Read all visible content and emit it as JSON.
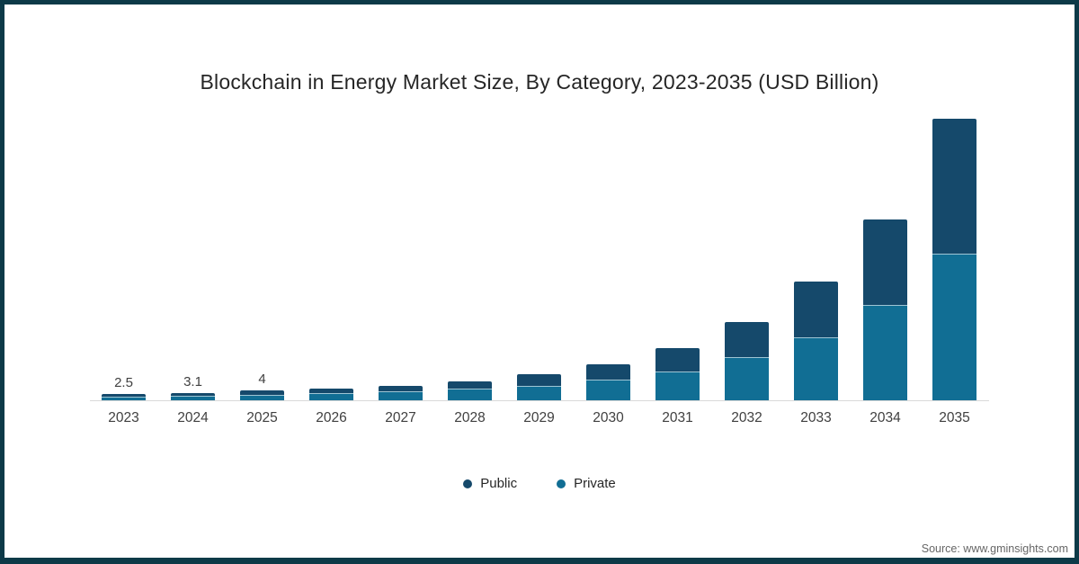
{
  "title": "Blockchain in Energy Market Size, By Category, 2023-2035 (USD Billion)",
  "source": "Source: www.gminsights.com",
  "frame": {
    "border_color": "#0D3A48"
  },
  "colors": {
    "public": "#15496B",
    "private": "#116E94",
    "axis_line": "#D9D9D9",
    "tick_text": "#404040",
    "title_text": "#262626",
    "source_text": "#666666"
  },
  "legend": {
    "position": "bottom",
    "items": [
      {
        "label": "Public",
        "color": "#15496B",
        "marker": "circle"
      },
      {
        "label": "Private",
        "color": "#116E94",
        "marker": "circle"
      }
    ]
  },
  "chart_data": {
    "type": "bar",
    "stacked": true,
    "title": "Blockchain in Energy Market Size, By Category, 2023-2035 (USD Billion)",
    "xlabel": "",
    "ylabel": "USD Billion",
    "ylim": [
      0,
      120
    ],
    "grid": false,
    "legend_position": "bottom",
    "categories": [
      "2023",
      "2024",
      "2025",
      "2026",
      "2027",
      "2028",
      "2029",
      "2030",
      "2031",
      "2032",
      "2033",
      "2034",
      "2035"
    ],
    "series": [
      {
        "name": "Private",
        "stack_order": "bottom",
        "color": "#116E94",
        "values": [
          1.5,
          1.8,
          2.4,
          3.0,
          3.8,
          5.0,
          6.2,
          8.5,
          12.0,
          18.0,
          26.5,
          40.0,
          61.5
        ]
      },
      {
        "name": "Public",
        "stack_order": "top",
        "color": "#15496B",
        "values": [
          1.0,
          1.3,
          1.6,
          2.0,
          2.4,
          3.0,
          4.8,
          6.5,
          10.0,
          15.0,
          23.5,
          36.0,
          56.5
        ]
      }
    ],
    "totals": [
      2.5,
      3.1,
      4,
      5,
      6.2,
      8,
      11,
      15,
      22,
      33,
      50,
      76,
      118
    ],
    "bar_labels": [
      "2.5",
      "3.1",
      "4",
      "",
      "",
      "",
      "",
      "",
      "",
      "",
      "",
      "",
      ""
    ]
  }
}
